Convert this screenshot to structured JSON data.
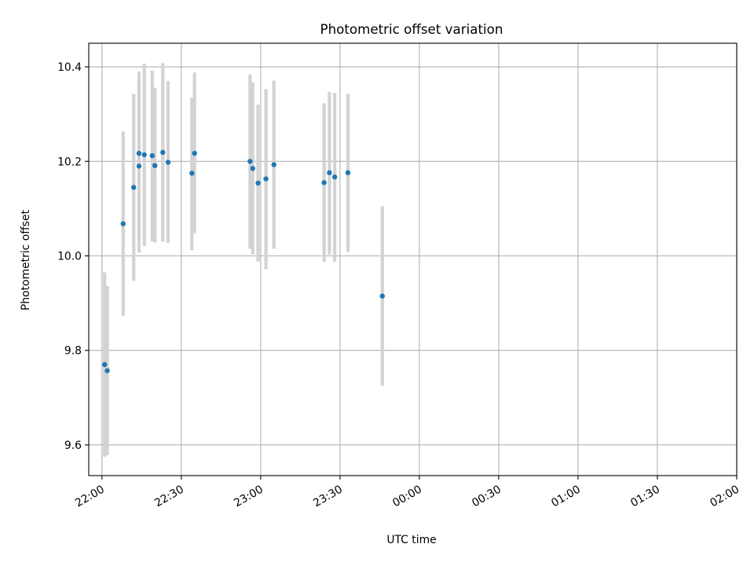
{
  "chart_data": {
    "type": "scatter",
    "title": "Photometric offset variation",
    "xlabel": "UTC time",
    "ylabel": "Photometric offset",
    "x_axis_kind": "time",
    "xlim": [
      "21:55",
      "02:00"
    ],
    "ylim": [
      9.535,
      10.45
    ],
    "grid": true,
    "legend": null,
    "x_ticks": [
      "22:00",
      "22:30",
      "23:00",
      "23:30",
      "00:00",
      "00:30",
      "01:00",
      "01:30",
      "02:00"
    ],
    "y_ticks": [
      "9.6",
      "9.8",
      "10.0",
      "10.2",
      "10.4"
    ],
    "marker_color": "#1f77b4",
    "errorbar_color": "#d3d3d3",
    "points": [
      {
        "x": "22:01",
        "y": 9.77,
        "ylow": 9.575,
        "yhigh": 9.965
      },
      {
        "x": "22:02",
        "y": 9.757,
        "ylow": 9.578,
        "yhigh": 9.936
      },
      {
        "x": "22:08",
        "y": 10.068,
        "ylow": 9.873,
        "yhigh": 10.263
      },
      {
        "x": "22:12",
        "y": 10.145,
        "ylow": 9.947,
        "yhigh": 10.343
      },
      {
        "x": "22:14",
        "y": 10.19,
        "ylow": 10.007,
        "yhigh": 10.373
      },
      {
        "x": "22:14",
        "y": 10.217,
        "ylow": 10.042,
        "yhigh": 10.39
      },
      {
        "x": "22:16",
        "y": 10.214,
        "ylow": 10.021,
        "yhigh": 10.407
      },
      {
        "x": "22:19",
        "y": 10.212,
        "ylow": 10.031,
        "yhigh": 10.392
      },
      {
        "x": "22:20",
        "y": 10.191,
        "ylow": 10.028,
        "yhigh": 10.356
      },
      {
        "x": "22:23",
        "y": 10.219,
        "ylow": 10.03,
        "yhigh": 10.408
      },
      {
        "x": "22:25",
        "y": 10.198,
        "ylow": 10.027,
        "yhigh": 10.37
      },
      {
        "x": "22:34",
        "y": 10.175,
        "ylow": 10.012,
        "yhigh": 10.335
      },
      {
        "x": "22:35",
        "y": 10.217,
        "ylow": 10.048,
        "yhigh": 10.388
      },
      {
        "x": "22:56",
        "y": 10.2,
        "ylow": 10.015,
        "yhigh": 10.384
      },
      {
        "x": "22:57",
        "y": 10.185,
        "ylow": 10.003,
        "yhigh": 10.367
      },
      {
        "x": "22:59",
        "y": 10.154,
        "ylow": 9.988,
        "yhigh": 10.32
      },
      {
        "x": "23:02",
        "y": 10.163,
        "ylow": 9.972,
        "yhigh": 10.353
      },
      {
        "x": "23:05",
        "y": 10.193,
        "ylow": 10.015,
        "yhigh": 10.371
      },
      {
        "x": "23:24",
        "y": 10.155,
        "ylow": 9.987,
        "yhigh": 10.323
      },
      {
        "x": "23:26",
        "y": 10.176,
        "ylow": 10.003,
        "yhigh": 10.347
      },
      {
        "x": "23:28",
        "y": 10.167,
        "ylow": 9.988,
        "yhigh": 10.345
      },
      {
        "x": "23:33",
        "y": 10.176,
        "ylow": 10.008,
        "yhigh": 10.343
      },
      {
        "x": "23:46",
        "y": 9.915,
        "ylow": 9.725,
        "yhigh": 10.105
      }
    ]
  }
}
